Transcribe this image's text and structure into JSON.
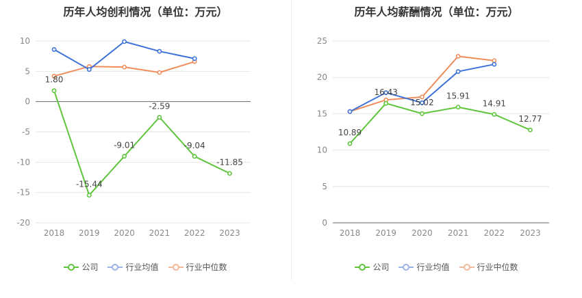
{
  "chart_data": [
    {
      "type": "line",
      "title": "历年人均创利情况（单位：万元）",
      "xlabel": "",
      "ylabel": "",
      "ylim": [
        -20,
        10
      ],
      "yticks": [
        10,
        5,
        0,
        -5,
        -10,
        -15,
        -20
      ],
      "categories": [
        "2018",
        "2019",
        "2020",
        "2021",
        "2022",
        "2023"
      ],
      "series": [
        {
          "name": "公司",
          "color": "#5ec53b",
          "values": [
            1.8,
            -15.44,
            -9.01,
            -2.59,
            -9.04,
            -11.85
          ],
          "labels": [
            "1.80",
            "-15.44",
            "-9.01",
            "-2.59",
            "-9.04",
            "-11.85"
          ]
        },
        {
          "name": "行业均值",
          "color": "#3d72d9",
          "values": [
            8.6,
            5.3,
            9.9,
            8.3,
            7.1,
            null
          ]
        },
        {
          "name": "行业中位数",
          "color": "#f08c5a",
          "values": [
            4.2,
            5.8,
            5.7,
            4.8,
            6.6,
            null
          ]
        }
      ],
      "legend": "bottom"
    },
    {
      "type": "line",
      "title": "历年人均薪酬情况（单位：万元）",
      "xlabel": "",
      "ylabel": "",
      "ylim": [
        0,
        25
      ],
      "yticks": [
        25,
        20,
        15,
        10,
        5,
        0
      ],
      "categories": [
        "2018",
        "2019",
        "2020",
        "2021",
        "2022",
        "2023"
      ],
      "series": [
        {
          "name": "公司",
          "color": "#5ec53b",
          "values": [
            10.89,
            16.43,
            15.02,
            15.91,
            14.91,
            12.77
          ],
          "labels": [
            "10.89",
            "16.43",
            "15.02",
            "15.91",
            "14.91",
            "12.77"
          ]
        },
        {
          "name": "行业均值",
          "color": "#3d72d9",
          "values": [
            15.3,
            17.9,
            16.5,
            20.8,
            21.8,
            null
          ]
        },
        {
          "name": "行业中位数",
          "color": "#f08c5a",
          "values": [
            15.3,
            16.9,
            17.3,
            22.9,
            22.3,
            null
          ]
        }
      ],
      "legend": "bottom"
    }
  ]
}
